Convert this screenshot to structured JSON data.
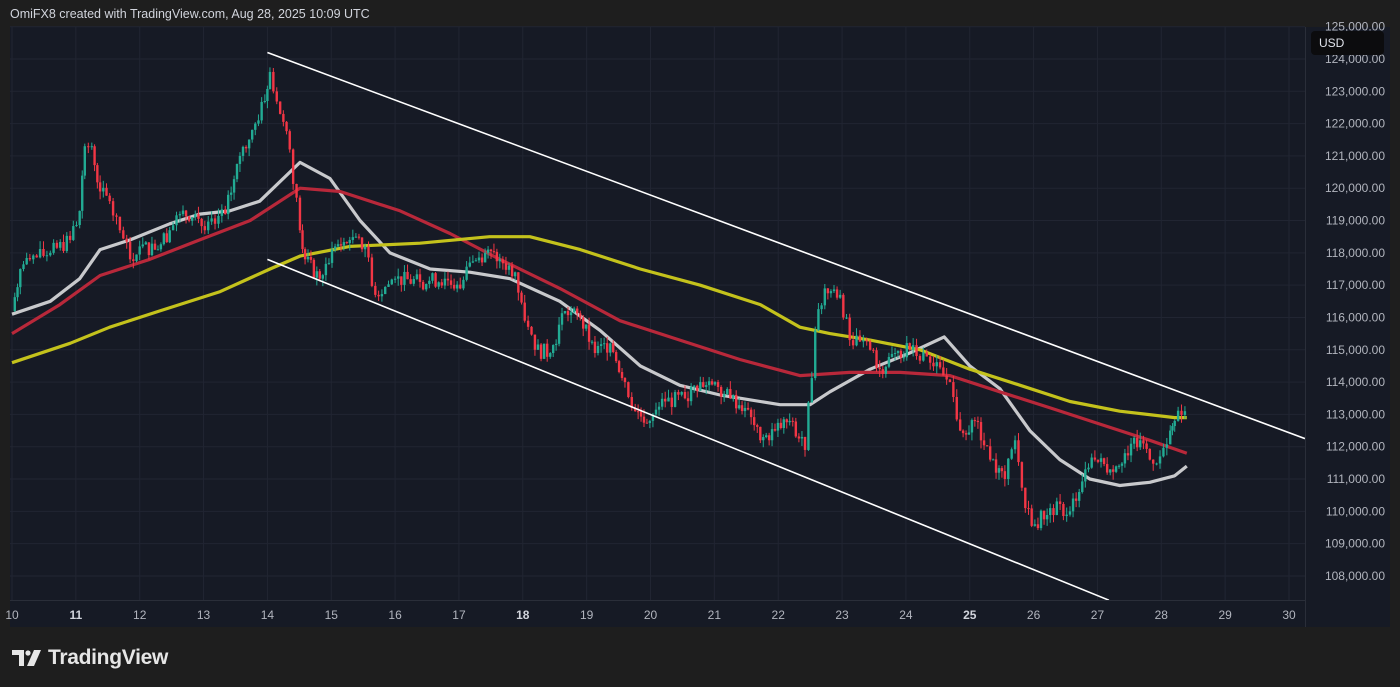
{
  "header": {
    "text": "OmiFX8 created with TradingView.com, Aug 28, 2025 10:09 UTC"
  },
  "currency_button": "USD",
  "logo": {
    "text": "TradingView"
  },
  "colors": {
    "background": "#161a25",
    "up": "#22ab94",
    "down": "#f23645",
    "ma_fast": "#c8c9cc",
    "ma_mid": "#b8283a",
    "ma_slow": "#c4c21c",
    "channel": "#ffffff"
  },
  "chart_data": {
    "type": "candlestick",
    "title": "",
    "xlabel": "",
    "ylabel": "",
    "x_ticks": [
      "10",
      "11",
      "12",
      "13",
      "14",
      "15",
      "16",
      "17",
      "18",
      "19",
      "20",
      "21",
      "22",
      "23",
      "24",
      "25",
      "26",
      "27",
      "28",
      "29",
      "30"
    ],
    "x_ticks_bold": [
      "11",
      "18",
      "25"
    ],
    "y_ticks": [
      "108,000.00",
      "109,000.00",
      "110,000.00",
      "111,000.00",
      "112,000.00",
      "113,000.00",
      "114,000.00",
      "115,000.00",
      "116,000.00",
      "117,000.00",
      "118,000.00",
      "119,000.00",
      "120,000.00",
      "121,000.00",
      "122,000.00",
      "123,000.00",
      "124,000.00",
      "125,000.00"
    ],
    "xlim": [
      10,
      30.3
    ],
    "ylim": [
      107200,
      125000
    ],
    "grid": true,
    "price_path": [
      [
        10.0,
        116200
      ],
      [
        10.13,
        117500
      ],
      [
        10.28,
        117800
      ],
      [
        10.6,
        118000
      ],
      [
        10.91,
        118400
      ],
      [
        11.06,
        119300
      ],
      [
        11.14,
        121300
      ],
      [
        11.25,
        121300
      ],
      [
        11.38,
        119900
      ],
      [
        11.53,
        119600
      ],
      [
        11.69,
        118700
      ],
      [
        11.85,
        117800
      ],
      [
        12.0,
        118200
      ],
      [
        12.24,
        118100
      ],
      [
        12.47,
        118700
      ],
      [
        12.63,
        119200
      ],
      [
        12.87,
        119200
      ],
      [
        13.02,
        118700
      ],
      [
        13.18,
        118900
      ],
      [
        13.34,
        119200
      ],
      [
        13.57,
        121000
      ],
      [
        13.81,
        122000
      ],
      [
        13.96,
        122700
      ],
      [
        14.04,
        123600
      ],
      [
        14.2,
        122300
      ],
      [
        14.35,
        121200
      ],
      [
        14.51,
        118700
      ],
      [
        14.59,
        117800
      ],
      [
        14.82,
        117200
      ],
      [
        15.06,
        118200
      ],
      [
        15.29,
        118400
      ],
      [
        15.53,
        118200
      ],
      [
        15.69,
        116700
      ],
      [
        16.0,
        117200
      ],
      [
        16.39,
        117100
      ],
      [
        16.78,
        117200
      ],
      [
        17.02,
        116900
      ],
      [
        17.17,
        117700
      ],
      [
        17.41,
        118000
      ],
      [
        17.64,
        117800
      ],
      [
        17.88,
        117400
      ],
      [
        18.03,
        115900
      ],
      [
        18.19,
        115000
      ],
      [
        18.43,
        114900
      ],
      [
        18.66,
        116200
      ],
      [
        18.9,
        116000
      ],
      [
        19.13,
        114900
      ],
      [
        19.37,
        115200
      ],
      [
        19.6,
        114000
      ],
      [
        19.76,
        113100
      ],
      [
        19.99,
        112800
      ],
      [
        20.23,
        113400
      ],
      [
        20.54,
        113500
      ],
      [
        20.78,
        114000
      ],
      [
        21.01,
        114000
      ],
      [
        21.25,
        113500
      ],
      [
        21.48,
        113200
      ],
      [
        21.72,
        112200
      ],
      [
        21.95,
        112500
      ],
      [
        22.18,
        112800
      ],
      [
        22.42,
        111900
      ],
      [
        22.58,
        115600
      ],
      [
        22.73,
        116900
      ],
      [
        22.97,
        116700
      ],
      [
        23.12,
        115300
      ],
      [
        23.44,
        115000
      ],
      [
        23.59,
        114400
      ],
      [
        23.83,
        114900
      ],
      [
        24.06,
        115000
      ],
      [
        24.38,
        114600
      ],
      [
        24.69,
        114000
      ],
      [
        24.85,
        112500
      ],
      [
        25.08,
        112800
      ],
      [
        25.32,
        111600
      ],
      [
        25.55,
        111000
      ],
      [
        25.71,
        112200
      ],
      [
        25.87,
        110100
      ],
      [
        26.02,
        109600
      ],
      [
        26.26,
        110100
      ],
      [
        26.57,
        110000
      ],
      [
        26.81,
        111300
      ],
      [
        26.96,
        111600
      ],
      [
        27.2,
        111300
      ],
      [
        27.43,
        111800
      ],
      [
        27.67,
        112200
      ],
      [
        27.82,
        111600
      ],
      [
        27.98,
        111700
      ],
      [
        28.14,
        112500
      ],
      [
        28.21,
        112800
      ],
      [
        28.37,
        113100
      ]
    ],
    "series": [
      {
        "key": "ma_fast",
        "color": "#c8c9cc",
        "points": [
          [
            10.0,
            116100
          ],
          [
            10.6,
            116500
          ],
          [
            11.06,
            117200
          ],
          [
            11.38,
            118100
          ],
          [
            11.85,
            118400
          ],
          [
            12.47,
            118900
          ],
          [
            12.94,
            119200
          ],
          [
            13.41,
            119300
          ],
          [
            13.88,
            119600
          ],
          [
            14.51,
            120800
          ],
          [
            14.98,
            120300
          ],
          [
            15.45,
            119000
          ],
          [
            15.92,
            118000
          ],
          [
            16.55,
            117500
          ],
          [
            17.17,
            117400
          ],
          [
            17.8,
            117200
          ],
          [
            18.58,
            116500
          ],
          [
            19.21,
            115600
          ],
          [
            19.84,
            114500
          ],
          [
            20.46,
            113900
          ],
          [
            21.09,
            113600
          ],
          [
            22.03,
            113300
          ],
          [
            22.5,
            113300
          ],
          [
            22.81,
            113700
          ],
          [
            23.44,
            114400
          ],
          [
            24.06,
            114900
          ],
          [
            24.6,
            115400
          ],
          [
            25.0,
            114500
          ],
          [
            25.47,
            113800
          ],
          [
            25.94,
            112500
          ],
          [
            26.41,
            111600
          ],
          [
            26.88,
            111000
          ],
          [
            27.35,
            110800
          ],
          [
            27.82,
            110900
          ],
          [
            28.21,
            111100
          ],
          [
            28.4,
            111400
          ]
        ]
      },
      {
        "key": "ma_mid",
        "color": "#b8283a",
        "points": [
          [
            10.0,
            115500
          ],
          [
            10.75,
            116400
          ],
          [
            11.38,
            117300
          ],
          [
            12.16,
            117800
          ],
          [
            12.94,
            118400
          ],
          [
            13.73,
            119000
          ],
          [
            14.51,
            120000
          ],
          [
            15.14,
            119900
          ],
          [
            16.08,
            119300
          ],
          [
            16.86,
            118600
          ],
          [
            17.64,
            117800
          ],
          [
            18.58,
            116900
          ],
          [
            19.52,
            115900
          ],
          [
            20.46,
            115300
          ],
          [
            21.4,
            114700
          ],
          [
            22.34,
            114200
          ],
          [
            23.12,
            114300
          ],
          [
            23.91,
            114300
          ],
          [
            24.69,
            114200
          ],
          [
            25.47,
            113700
          ],
          [
            26.26,
            113200
          ],
          [
            27.04,
            112700
          ],
          [
            27.82,
            112200
          ],
          [
            28.4,
            111800
          ]
        ]
      },
      {
        "key": "ma_slow",
        "color": "#c4c21c",
        "points": [
          [
            10.0,
            114600
          ],
          [
            10.91,
            115200
          ],
          [
            11.53,
            115700
          ],
          [
            12.31,
            116200
          ],
          [
            13.26,
            116800
          ],
          [
            14.04,
            117500
          ],
          [
            14.51,
            117900
          ],
          [
            15.29,
            118200
          ],
          [
            16.39,
            118300
          ],
          [
            17.48,
            118500
          ],
          [
            18.11,
            118500
          ],
          [
            18.9,
            118100
          ],
          [
            19.84,
            117500
          ],
          [
            20.78,
            117000
          ],
          [
            21.72,
            116400
          ],
          [
            22.34,
            115700
          ],
          [
            22.81,
            115500
          ],
          [
            23.44,
            115300
          ],
          [
            24.22,
            115000
          ],
          [
            25.0,
            114400
          ],
          [
            25.79,
            113900
          ],
          [
            26.57,
            113400
          ],
          [
            27.35,
            113100
          ],
          [
            28.21,
            112900
          ],
          [
            28.4,
            112900
          ]
        ]
      }
    ],
    "trendlines": [
      {
        "key": "channel-upper",
        "from": [
          14.0,
          124200
        ],
        "to": [
          30.25,
          112250
        ]
      },
      {
        "key": "channel-lower",
        "from": [
          14.0,
          117800
        ],
        "to": [
          27.18,
          107250
        ]
      }
    ],
    "last_price": 113100
  }
}
